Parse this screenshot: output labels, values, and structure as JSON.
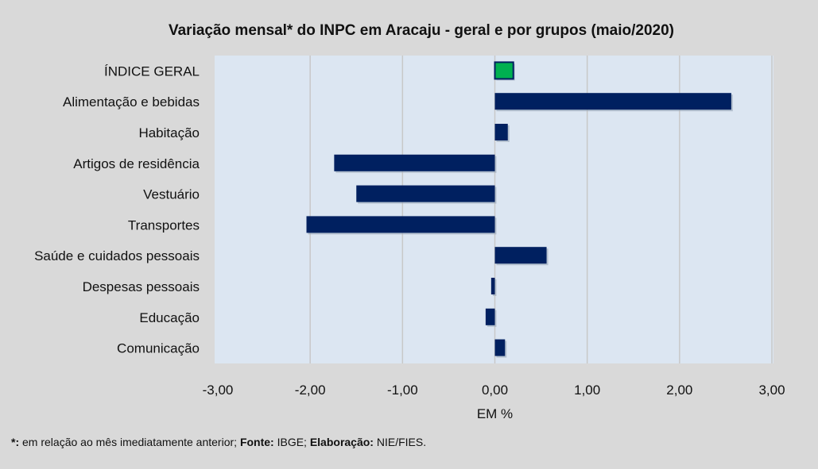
{
  "chart_data": {
    "type": "bar",
    "orientation": "horizontal",
    "title": "Variação  mensal* do INPC em Aracaju  - geral e por grupos (maio/2020)",
    "xlabel": "EM %",
    "ylabel": "",
    "xlim": [
      -3,
      3
    ],
    "xticks": [
      "-3,00",
      "-2,00",
      "-1,00",
      "0,00",
      "1,00",
      "2,00",
      "3,00"
    ],
    "grid": true,
    "categories": [
      "ÍNDICE GERAL",
      "Alimentação e bebidas",
      "Habitação",
      "Artigos de residência",
      "Vestuário",
      "Transportes",
      "Saúde e cuidados pessoais",
      "Despesas pessoais",
      "Educação",
      "Comunicação"
    ],
    "values": [
      0.2,
      2.56,
      0.14,
      -1.74,
      -1.5,
      -2.04,
      0.56,
      -0.04,
      -0.1,
      0.11
    ],
    "colors": {
      "highlight": "#00b050",
      "bar": "#002060",
      "plot_bg": "#dce6f2",
      "page_bg": "#d9d9d9"
    }
  },
  "footnote": {
    "star_label": "*:",
    "star_text": " em relação ao mês imediatamente  anterior; ",
    "source_label": "Fonte:",
    "source_text": " IBGE; ",
    "elab_label": "Elaboração:",
    "elab_text": " NIE/FIES."
  }
}
